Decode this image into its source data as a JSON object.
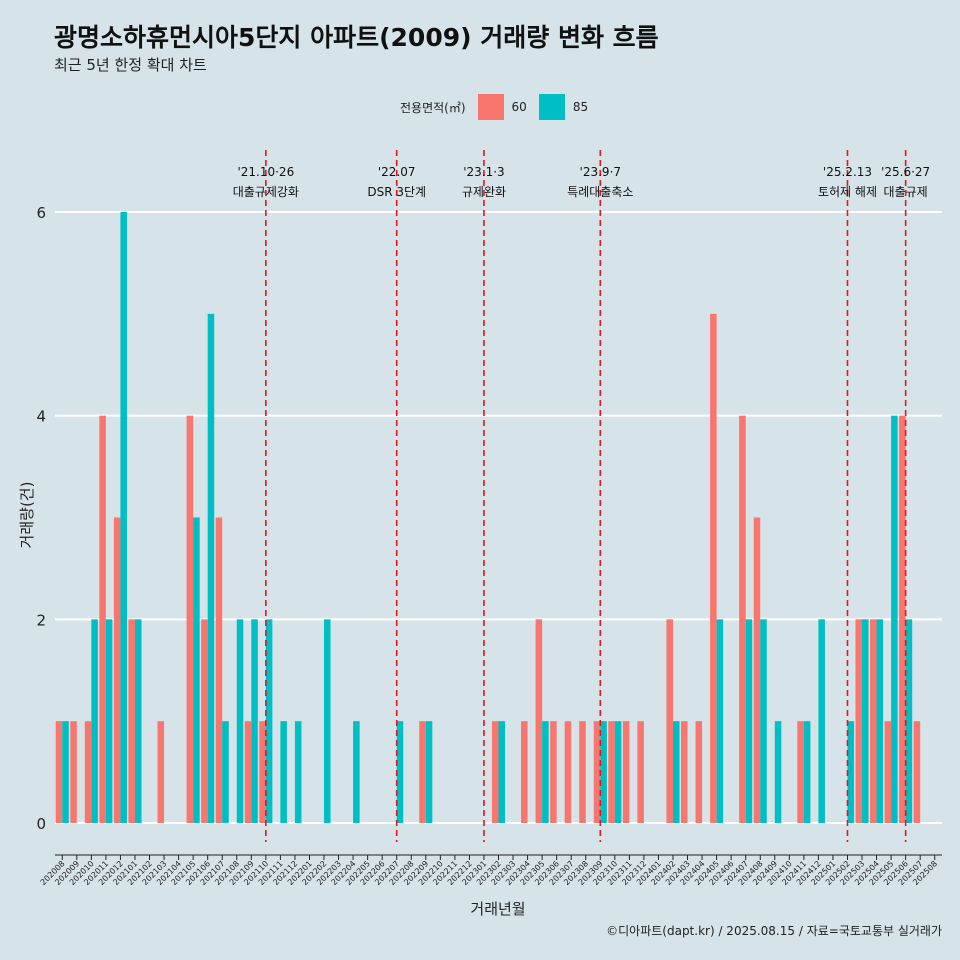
{
  "title": "광명소하휴먼시아5단지 아파트(2009) 거래량 변화 흐름",
  "subtitle": "최근 5년 한정 확대 차트",
  "caption": "©디아파트(dapt.kr) / 2025.08.15 / 자료=국토교통부 실거래가",
  "legend": {
    "title": "전용면적(㎡)",
    "items": [
      {
        "label": "60",
        "color": "#f8766d"
      },
      {
        "label": "85",
        "color": "#00bfc4"
      }
    ]
  },
  "chart_data": {
    "type": "bar",
    "xlabel": "거래년월",
    "ylabel": "거래량(건)",
    "ylim": [
      0,
      6.6
    ],
    "yticks": [
      0,
      2,
      4,
      6
    ],
    "grid": true,
    "legend_position": "top",
    "categories": [
      "202008",
      "202009",
      "202010",
      "202011",
      "202012",
      "202101",
      "202102",
      "202103",
      "202104",
      "202105",
      "202106",
      "202107",
      "202108",
      "202109",
      "202110",
      "202111",
      "202112",
      "202201",
      "202202",
      "202203",
      "202204",
      "202205",
      "202206",
      "202207",
      "202208",
      "202209",
      "202210",
      "202211",
      "202212",
      "202301",
      "202302",
      "202303",
      "202304",
      "202305",
      "202306",
      "202307",
      "202308",
      "202309",
      "202310",
      "202311",
      "202312",
      "202401",
      "202402",
      "202403",
      "202404",
      "202405",
      "202406",
      "202407",
      "202408",
      "202409",
      "202410",
      "202411",
      "202412",
      "202501",
      "202502",
      "202503",
      "202504",
      "202505",
      "202506",
      "202507",
      "202508"
    ],
    "series": [
      {
        "name": "60",
        "color": "#f8766d",
        "values": [
          1,
          1,
          1,
          4,
          3,
          2,
          0,
          1,
          0,
          4,
          2,
          3,
          0,
          1,
          1,
          0,
          0,
          0,
          0,
          0,
          0,
          0,
          0,
          0,
          0,
          1,
          0,
          0,
          0,
          0,
          1,
          0,
          1,
          2,
          1,
          1,
          1,
          1,
          1,
          1,
          1,
          0,
          2,
          1,
          1,
          5,
          0,
          4,
          3,
          0,
          0,
          1,
          0,
          0,
          0,
          2,
          2,
          1,
          4,
          1,
          0
        ]
      },
      {
        "name": "85",
        "color": "#00bfc4",
        "values": [
          1,
          0,
          2,
          2,
          6,
          2,
          0,
          0,
          0,
          3,
          5,
          1,
          2,
          2,
          2,
          1,
          1,
          0,
          2,
          0,
          1,
          0,
          0,
          1,
          0,
          1,
          0,
          0,
          0,
          0,
          1,
          0,
          0,
          1,
          0,
          0,
          0,
          1,
          1,
          0,
          0,
          0,
          1,
          0,
          0,
          2,
          0,
          2,
          2,
          1,
          0,
          1,
          2,
          0,
          1,
          2,
          2,
          4,
          2,
          0,
          0
        ]
      }
    ],
    "events": [
      {
        "date": "202110",
        "label1": "'21.10·26",
        "label2": "대출규제강화"
      },
      {
        "date": "202207",
        "label1": "'22.07",
        "label2": "DSR 3단계"
      },
      {
        "date": "202301",
        "label1": "'23.1·3",
        "label2": "규제완화"
      },
      {
        "date": "202309",
        "label1": "'23.9·7",
        "label2": "특례대출축소"
      },
      {
        "date": "202502",
        "label1": "'25.2.13",
        "label2": "토허제 해제"
      },
      {
        "date": "202506",
        "label1": "'25.6·27",
        "label2": "대출규제"
      }
    ]
  }
}
